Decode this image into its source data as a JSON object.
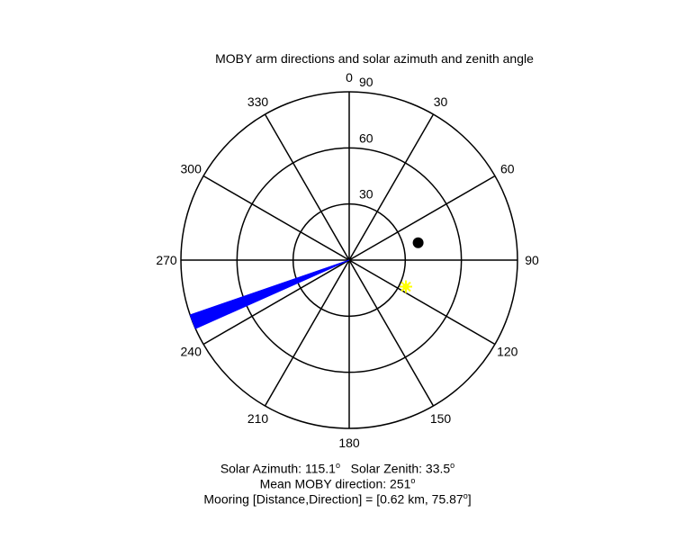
{
  "chart_data": {
    "type": "polar",
    "title": "MOBY arm directions and solar azimuth and zenith angle",
    "angular_axis": {
      "direction": "clockwise",
      "zero_location": "top",
      "tick_labels": [
        "0",
        "30",
        "60",
        "90",
        "120",
        "150",
        "180",
        "210",
        "240",
        "270",
        "300",
        "330"
      ]
    },
    "radial_axis": {
      "range": [
        0,
        90
      ],
      "tick_labels": [
        "30",
        "60",
        "90"
      ]
    },
    "series": [
      {
        "kind": "wedge",
        "azimuth_range_deg": [
          246,
          251
        ],
        "radius": 90,
        "color": "#0000ff"
      },
      {
        "kind": "point",
        "azimuth_deg": 75.87,
        "radius": 38,
        "color": "#000000"
      },
      {
        "kind": "point",
        "azimuth_deg": 115.1,
        "radius": 33.5,
        "color": "#ffff00"
      }
    ],
    "annotations": {
      "solar_azimuth_label": "Solar Azimuth: 115.1",
      "solar_zenith_label": "Solar Zenith: 33.5",
      "degree_mark": "o",
      "mean_direction_label": "Mean MOBY direction: 251",
      "mooring_label": "Mooring [Distance,Direction] = [0.62 km, 75.87",
      "mooring_suffix": "]"
    }
  }
}
